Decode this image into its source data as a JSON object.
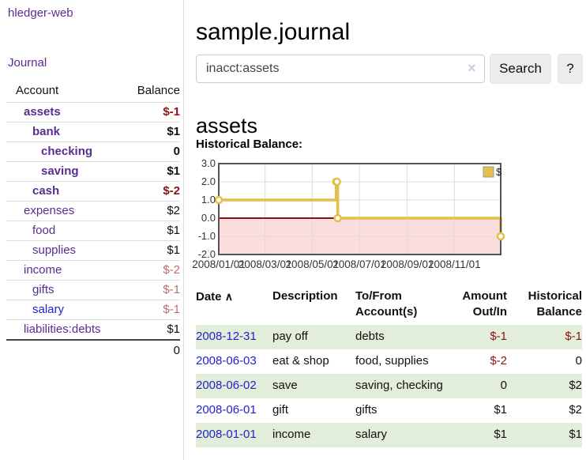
{
  "app": {
    "title": "hledger-web"
  },
  "colors": {
    "accent_purple": "#5a2d91",
    "link_blue": "#2222cc",
    "negative_strong": "#8e1414",
    "negative_muted": "#bd6c6c",
    "row_stripe_green": "#e2eeda",
    "series_gold": "#e4c04a"
  },
  "sidebar": {
    "journal_link": "Journal",
    "table": {
      "headers": {
        "account": "Account",
        "balance": "Balance"
      },
      "rows": [
        {
          "label": "assets",
          "level": 1,
          "bold": true,
          "balance": "$-1",
          "balance_tone": "neg"
        },
        {
          "label": "bank",
          "level": 2,
          "bold": true,
          "balance": "$1",
          "balance_tone": ""
        },
        {
          "label": "checking",
          "level": 3,
          "bold": true,
          "balance": "0",
          "balance_tone": ""
        },
        {
          "label": "saving",
          "level": 3,
          "bold": true,
          "balance": "$1",
          "balance_tone": ""
        },
        {
          "label": "cash",
          "level": 2,
          "bold": true,
          "balance": "$-2",
          "balance_tone": "neg"
        },
        {
          "label": "expenses",
          "level": 1,
          "bold": false,
          "balance": "$2",
          "balance_tone": ""
        },
        {
          "label": "food",
          "level": 2,
          "bold": false,
          "balance": "$1",
          "balance_tone": ""
        },
        {
          "label": "supplies",
          "level": 2,
          "bold": false,
          "balance": "$1",
          "balance_tone": ""
        },
        {
          "label": "income",
          "level": 1,
          "bold": false,
          "balance": "$-2",
          "balance_tone": "neg-muted"
        },
        {
          "label": "gifts",
          "level": 2,
          "bold": false,
          "balance": "$-1",
          "balance_tone": "neg-muted"
        },
        {
          "label": "salary",
          "level": 2,
          "bold": false,
          "balance": "$-1",
          "balance_tone": "neg-muted",
          "variant": "blue"
        },
        {
          "label": "liabilities:debts",
          "level": 1,
          "bold": false,
          "balance": "$1",
          "balance_tone": ""
        }
      ],
      "total": "0"
    }
  },
  "main": {
    "title": "sample.journal",
    "search": {
      "value": "inacct:assets",
      "clear_icon": "×",
      "button": "Search",
      "help_button": "?"
    },
    "account_heading": "assets",
    "chart_label": "Historical Balance:"
  },
  "chart_data": {
    "type": "line",
    "title": "Historical Balance",
    "step": "after",
    "series": [
      {
        "name": "$",
        "points": [
          {
            "date": "2008-01-01",
            "value": 1
          },
          {
            "date": "2008-06-01",
            "value": 2
          },
          {
            "date": "2008-06-02",
            "value": 2
          },
          {
            "date": "2008-06-03",
            "value": 0
          },
          {
            "date": "2008-12-31",
            "value": -1
          }
        ],
        "color": "#e4c04a"
      }
    ],
    "x_range": {
      "start": "2008-01-01",
      "end": "2008-12-31"
    },
    "x_ticks": [
      {
        "label": "2008/01/01",
        "date": "2008-01-01"
      },
      {
        "label": "2008/03/01",
        "date": "2008-03-01"
      },
      {
        "label": "2008/05/01",
        "date": "2008-05-01"
      },
      {
        "label": "2008/07/01",
        "date": "2008-07-01"
      },
      {
        "label": "2008/09/01",
        "date": "2008-09-01"
      },
      {
        "label": "2008/11/01",
        "date": "2008-11-01"
      }
    ],
    "y_ticks": [
      "3.0",
      "2.0",
      "1.0",
      "0.0",
      "-1.0",
      "-2.0"
    ],
    "ylim": [
      -2,
      3
    ],
    "grid": true,
    "legend": {
      "label": "$",
      "position": "top-right"
    },
    "negative_region_color": "#fbdddd",
    "zero_line_color": "#8e1010",
    "border_color": "#545454",
    "grid_color": "#dcdcdc"
  },
  "transactions": {
    "headers": [
      "Date",
      "Description",
      "To/From Account(s)",
      "Amount Out/In",
      "Historical Balance"
    ],
    "sort_icon": "caret-up",
    "sort_glyph": "∧",
    "rows": [
      {
        "date": "2008-12-31",
        "description": "pay off",
        "accounts": "debts",
        "amount": "$-1",
        "balance": "$-1"
      },
      {
        "date": "2008-06-03",
        "description": "eat & shop",
        "accounts": "food, supplies",
        "amount": "$-2",
        "balance": "0"
      },
      {
        "date": "2008-06-02",
        "description": "save",
        "accounts": "saving, checking",
        "amount": "0",
        "balance": "$2"
      },
      {
        "date": "2008-06-01",
        "description": "gift",
        "accounts": "gifts",
        "amount": "$1",
        "balance": "$2"
      },
      {
        "date": "2008-01-01",
        "description": "income",
        "accounts": "salary",
        "amount": "$1",
        "balance": "$1"
      }
    ]
  }
}
